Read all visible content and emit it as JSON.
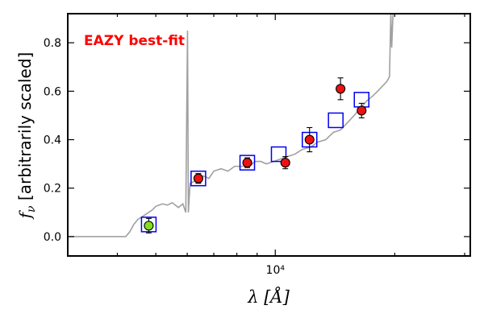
{
  "chart_data": {
    "type": "scatter",
    "title": "",
    "xlabel": "λ [Å]",
    "ylabel": "f_ν [arbitrarily scaled]",
    "xscale": "log",
    "xlim": [
      3000,
      31000
    ],
    "ylim": [
      -0.08,
      0.92
    ],
    "xticks": [
      {
        "value": 10000,
        "label": "10⁴"
      }
    ],
    "yticks": [
      0.0,
      0.2,
      0.4,
      0.6,
      0.8
    ],
    "ytick_labels": [
      "0.0",
      "0.2",
      "0.4",
      "0.6",
      "0.8"
    ],
    "grid": false,
    "annotation": {
      "text": "EAZY best-fit",
      "color": "#ff0000"
    },
    "colors": {
      "template": "#a0a0a0",
      "model": "#0000ee",
      "observed": "#ee1111",
      "highlight": "#80e020"
    },
    "series": [
      {
        "kind": "line",
        "points": [
          [
            3000,
            0.0
          ],
          [
            4200,
            0.0
          ],
          [
            4300,
            0.02
          ],
          [
            4400,
            0.05
          ],
          [
            4500,
            0.07
          ],
          [
            4600,
            0.08
          ],
          [
            4700,
            0.09
          ],
          [
            4800,
            0.1
          ],
          [
            4900,
            0.11
          ],
          [
            5000,
            0.125
          ],
          [
            5100,
            0.13
          ],
          [
            5200,
            0.135
          ],
          [
            5350,
            0.13
          ],
          [
            5500,
            0.14
          ],
          [
            5700,
            0.12
          ],
          [
            5850,
            0.135
          ],
          [
            5950,
            0.1
          ],
          [
            6010,
            0.85
          ],
          [
            6040,
            0.1
          ],
          [
            6100,
            0.22
          ],
          [
            6300,
            0.23
          ],
          [
            6600,
            0.25
          ],
          [
            6800,
            0.24
          ],
          [
            7000,
            0.27
          ],
          [
            7300,
            0.28
          ],
          [
            7600,
            0.27
          ],
          [
            7900,
            0.29
          ],
          [
            8200,
            0.29
          ],
          [
            8600,
            0.29
          ],
          [
            8900,
            0.31
          ],
          [
            9200,
            0.31
          ],
          [
            9500,
            0.3
          ],
          [
            9900,
            0.31
          ],
          [
            10300,
            0.32
          ],
          [
            10700,
            0.33
          ],
          [
            11200,
            0.34
          ],
          [
            11700,
            0.36
          ],
          [
            12300,
            0.37
          ],
          [
            12800,
            0.39
          ],
          [
            13400,
            0.4
          ],
          [
            14000,
            0.43
          ],
          [
            14600,
            0.44
          ],
          [
            15200,
            0.47
          ],
          [
            15800,
            0.5
          ],
          [
            16400,
            0.53
          ],
          [
            17000,
            0.56
          ],
          [
            17600,
            0.58
          ],
          [
            18100,
            0.6
          ],
          [
            18600,
            0.62
          ],
          [
            19100,
            0.64
          ],
          [
            19400,
            0.66
          ],
          [
            19550,
            0.92
          ],
          [
            19650,
            0.78
          ],
          [
            19800,
            0.92
          ],
          [
            20100,
            0.92
          ]
        ]
      },
      {
        "kind": "model",
        "marker": "open-square",
        "points": [
          [
            4800,
            0.05
          ],
          [
            6400,
            0.24
          ],
          [
            8500,
            0.305
          ],
          [
            10200,
            0.34
          ],
          [
            12200,
            0.4
          ],
          [
            14200,
            0.48
          ],
          [
            16500,
            0.565
          ]
        ]
      },
      {
        "kind": "observed",
        "marker": "circle",
        "points": [
          {
            "x": 4800,
            "y": 0.045,
            "err": 0.03,
            "highlight": true
          },
          {
            "x": 6400,
            "y": 0.24,
            "err": 0.02
          },
          {
            "x": 8500,
            "y": 0.305,
            "err": 0.02
          },
          {
            "x": 10600,
            "y": 0.305,
            "err": 0.025
          },
          {
            "x": 12200,
            "y": 0.4,
            "err": 0.05
          },
          {
            "x": 14600,
            "y": 0.61,
            "err": 0.045
          },
          {
            "x": 16500,
            "y": 0.52,
            "err": 0.03
          }
        ]
      }
    ]
  }
}
